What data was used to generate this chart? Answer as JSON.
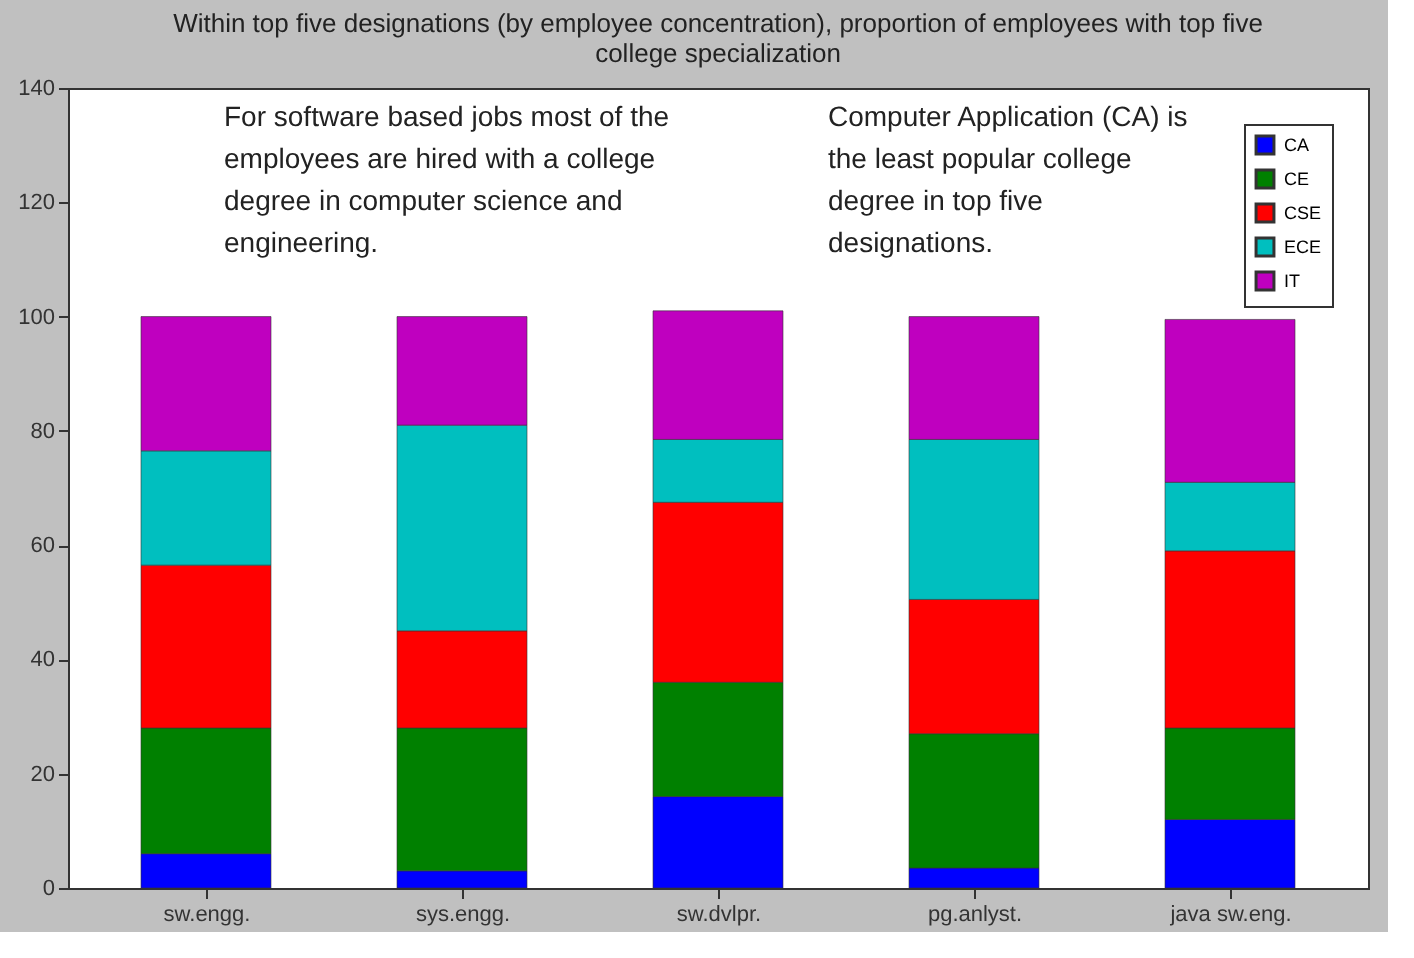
{
  "chart_data": {
    "type": "bar",
    "stacked": true,
    "title": "Within top five designations (by employee concentration), proportion of employees with top five college specialization",
    "categories": [
      "sw.engg.",
      "sys.engg.",
      "sw.dvlpr.",
      "pg.anlyst.",
      "java sw.eng."
    ],
    "series": [
      {
        "name": "CA",
        "color": "#0000ff",
        "values": [
          6,
          3,
          16,
          3.5,
          12
        ]
      },
      {
        "name": "CE",
        "color": "#008000",
        "values": [
          22,
          25,
          20,
          23.5,
          16
        ]
      },
      {
        "name": "CSE",
        "color": "#ff0000",
        "values": [
          28.5,
          17,
          31.5,
          23.5,
          31
        ]
      },
      {
        "name": "ECE",
        "color": "#00bfbf",
        "values": [
          20,
          36,
          11,
          28,
          12
        ]
      },
      {
        "name": "IT",
        "color": "#bf00bf",
        "values": [
          23.5,
          19,
          22.5,
          21.5,
          28.5
        ]
      }
    ],
    "ylim": [
      0,
      140
    ],
    "yticks": [
      0,
      20,
      40,
      60,
      80,
      100,
      120,
      140
    ],
    "grid": false,
    "legend": "top right",
    "annotations": [
      "For software based jobs most of the employees are hired with a college degree in computer science and engineering.",
      "Computer Application (CA) is the least popular college degree in top five designations."
    ]
  }
}
